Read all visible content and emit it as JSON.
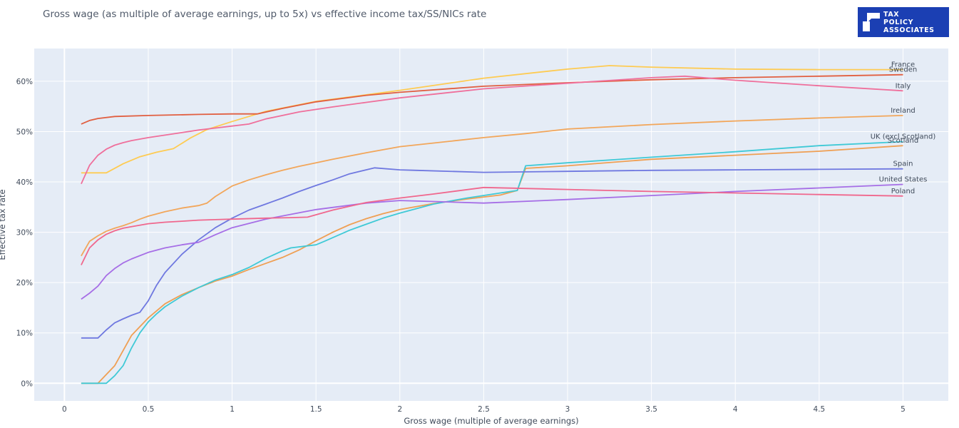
{
  "page": {
    "title": "Gross wage (as multiple of average earnings, up to 5x) vs effective income tax/SS/NICs rate",
    "logo": {
      "lines": [
        "TAX",
        "POLICY",
        "ASSOCIATES"
      ]
    }
  },
  "chart_data": {
    "type": "line",
    "title": "Gross wage (as multiple of average earnings, up to 5x) vs effective income tax/SS/NICs rate",
    "xlabel": "Gross wage (multiple of average earnings)",
    "ylabel": "Effective tax rate",
    "xlim": [
      -0.18,
      5.27
    ],
    "ylim": [
      -3.5,
      66.5
    ],
    "x_ticks": [
      0,
      0.5,
      1,
      1.5,
      2,
      2.5,
      3,
      3.5,
      4,
      4.5,
      5
    ],
    "x_tick_labels": [
      "0",
      "0.5",
      "1",
      "1.5",
      "2",
      "2.5",
      "3",
      "3.5",
      "4",
      "4.5",
      "5"
    ],
    "y_ticks": [
      0,
      10,
      20,
      30,
      40,
      50,
      60
    ],
    "y_tick_labels": [
      "0%",
      "10%",
      "20%",
      "30%",
      "40%",
      "50%",
      "60%"
    ],
    "grid": true,
    "legend": "labels at line ends (right)",
    "series": [
      {
        "name": "France",
        "color": "#fecb52",
        "x": [
          0.1,
          0.25,
          0.35,
          0.45,
          0.55,
          0.65,
          0.75,
          0.85,
          1.0,
          1.2,
          1.5,
          1.8,
          2.0,
          2.5,
          3.0,
          3.25,
          3.5,
          4.0,
          4.5,
          5.0
        ],
        "y": [
          41.8,
          41.8,
          43.6,
          45.0,
          45.9,
          46.6,
          48.7,
          50.4,
          52.0,
          54.0,
          56.0,
          57.3,
          58.2,
          60.6,
          62.4,
          63.1,
          62.8,
          62.4,
          62.3,
          62.3
        ]
      },
      {
        "name": "Sweden",
        "color": "#e15f41",
        "x": [
          0.1,
          0.15,
          0.2,
          0.3,
          0.5,
          0.8,
          1.0,
          1.15,
          1.3,
          1.5,
          1.8,
          2.0,
          2.5,
          3.0,
          3.5,
          4.0,
          4.5,
          5.0
        ],
        "y": [
          51.5,
          52.2,
          52.6,
          53.0,
          53.2,
          53.4,
          53.5,
          53.5,
          54.6,
          55.9,
          57.2,
          57.8,
          59.0,
          59.7,
          60.3,
          60.7,
          61.0,
          61.3
        ]
      },
      {
        "name": "Italy",
        "color": "#ef6f9b",
        "x": [
          0.1,
          0.15,
          0.2,
          0.25,
          0.3,
          0.35,
          0.4,
          0.5,
          0.6,
          0.7,
          0.8,
          0.9,
          1.0,
          1.1,
          1.2,
          1.4,
          1.6,
          1.8,
          2.0,
          2.5,
          3.0,
          3.5,
          3.7,
          4.0,
          4.5,
          5.0
        ],
        "y": [
          39.6,
          43.3,
          45.3,
          46.5,
          47.3,
          47.8,
          48.2,
          48.8,
          49.3,
          49.8,
          50.3,
          50.7,
          51.1,
          51.5,
          52.5,
          53.9,
          54.9,
          55.8,
          56.7,
          58.5,
          59.6,
          60.7,
          61.0,
          60.2,
          59.1,
          58.1
        ]
      },
      {
        "name": "Ireland",
        "color": "#f2a65a",
        "x": [
          0.1,
          0.15,
          0.2,
          0.25,
          0.3,
          0.35,
          0.4,
          0.45,
          0.5,
          0.6,
          0.7,
          0.8,
          0.85,
          0.9,
          1.0,
          1.1,
          1.2,
          1.3,
          1.4,
          1.5,
          1.6,
          1.8,
          2.0,
          2.5,
          2.75,
          3.0,
          3.5,
          4.0,
          4.5,
          5.0
        ],
        "y": [
          25.3,
          28.2,
          29.3,
          30.2,
          30.8,
          31.3,
          31.9,
          32.6,
          33.2,
          34.1,
          34.8,
          35.3,
          35.8,
          37.1,
          39.2,
          40.4,
          41.4,
          42.3,
          43.1,
          43.8,
          44.5,
          45.8,
          47.0,
          48.8,
          49.6,
          50.5,
          51.4,
          52.1,
          52.7,
          53.2
        ]
      },
      {
        "name": "Scotland",
        "color": "#ef9f53",
        "x": [
          0.1,
          0.2,
          0.3,
          0.4,
          0.5,
          0.6,
          0.7,
          0.8,
          0.9,
          1.0,
          1.1,
          1.2,
          1.3,
          1.4,
          1.5,
          1.6,
          1.7,
          1.8,
          1.9,
          2.0,
          2.2,
          2.4,
          2.6,
          2.7,
          2.75,
          3.0,
          3.5,
          4.0,
          4.5,
          5.0
        ],
        "y": [
          0.0,
          0.0,
          3.5,
          9.5,
          13.0,
          15.8,
          17.6,
          19.0,
          20.3,
          21.3,
          22.6,
          23.8,
          25.0,
          26.5,
          28.3,
          30.0,
          31.5,
          32.7,
          33.7,
          34.5,
          35.7,
          36.6,
          37.4,
          38.3,
          42.7,
          43.2,
          44.5,
          45.3,
          46.1,
          47.2
        ]
      },
      {
        "name": "UK (excl Scotland)",
        "color": "#3fc9d6",
        "x": [
          0.1,
          0.15,
          0.2,
          0.25,
          0.3,
          0.35,
          0.4,
          0.45,
          0.5,
          0.55,
          0.6,
          0.7,
          0.8,
          0.9,
          1.0,
          1.1,
          1.2,
          1.3,
          1.35,
          1.5,
          1.55,
          1.7,
          1.9,
          2.0,
          2.2,
          2.4,
          2.6,
          2.7,
          2.75,
          3.0,
          3.5,
          4.0,
          4.5,
          5.0
        ],
        "y": [
          0.0,
          0.0,
          0.0,
          0.0,
          1.5,
          3.5,
          7.0,
          10.0,
          12.2,
          13.8,
          15.2,
          17.3,
          19.0,
          20.5,
          21.6,
          23.0,
          24.8,
          26.3,
          26.9,
          27.5,
          28.2,
          30.4,
          32.8,
          33.8,
          35.6,
          36.8,
          37.8,
          38.3,
          43.2,
          43.8,
          44.9,
          46.0,
          47.2,
          48.0
        ]
      },
      {
        "name": "Spain",
        "color": "#6f78e0",
        "x": [
          0.1,
          0.15,
          0.2,
          0.25,
          0.3,
          0.35,
          0.4,
          0.45,
          0.5,
          0.55,
          0.6,
          0.7,
          0.8,
          0.9,
          1.0,
          1.1,
          1.2,
          1.3,
          1.4,
          1.5,
          1.6,
          1.7,
          1.85,
          2.0,
          2.1,
          2.5,
          3.0,
          3.5,
          4.0,
          4.5,
          5.0
        ],
        "y": [
          9.0,
          9.0,
          9.0,
          10.6,
          12.0,
          12.8,
          13.5,
          14.1,
          16.4,
          19.5,
          22.0,
          25.6,
          28.5,
          30.9,
          32.8,
          34.4,
          35.6,
          36.8,
          38.1,
          39.3,
          40.4,
          41.6,
          42.8,
          42.4,
          42.3,
          41.9,
          42.1,
          42.3,
          42.4,
          42.5,
          42.6
        ]
      },
      {
        "name": "United States",
        "color": "#a66ee6",
        "x": [
          0.1,
          0.15,
          0.2,
          0.25,
          0.3,
          0.35,
          0.4,
          0.5,
          0.6,
          0.7,
          0.8,
          0.9,
          1.0,
          1.2,
          1.5,
          1.8,
          2.0,
          2.2,
          2.5,
          3.0,
          3.5,
          4.0,
          4.5,
          5.0
        ],
        "y": [
          16.7,
          17.9,
          19.3,
          21.4,
          22.8,
          23.9,
          24.7,
          26.0,
          26.9,
          27.5,
          28.0,
          29.5,
          30.9,
          32.6,
          34.5,
          35.8,
          36.3,
          36.1,
          35.8,
          36.5,
          37.3,
          38.1,
          38.8,
          39.5
        ]
      },
      {
        "name": "Poland",
        "color": "#f0678d",
        "x": [
          0.1,
          0.15,
          0.2,
          0.25,
          0.3,
          0.35,
          0.4,
          0.5,
          0.6,
          0.7,
          0.8,
          0.9,
          1.0,
          1.2,
          1.35,
          1.45,
          1.6,
          1.8,
          2.0,
          2.2,
          2.5,
          3.0,
          3.5,
          4.0,
          4.5,
          5.0
        ],
        "y": [
          23.5,
          26.9,
          28.5,
          29.6,
          30.3,
          30.8,
          31.1,
          31.7,
          32.0,
          32.2,
          32.4,
          32.5,
          32.6,
          32.8,
          32.9,
          33.0,
          34.4,
          35.9,
          36.8,
          37.6,
          38.9,
          38.5,
          38.1,
          37.8,
          37.5,
          37.2
        ]
      }
    ],
    "end_labels": [
      {
        "series": "France",
        "x": 5.0,
        "y": 62.3
      },
      {
        "series": "Sweden",
        "x": 5.0,
        "y": 61.3
      },
      {
        "series": "Italy",
        "x": 5.0,
        "y": 58.1
      },
      {
        "series": "Ireland",
        "x": 5.0,
        "y": 53.2
      },
      {
        "series": "Scotland",
        "x": 5.0,
        "y": 47.2
      },
      {
        "series": "UK (excl Scotland)",
        "x": 5.0,
        "y": 48.0
      },
      {
        "series": "Spain",
        "x": 5.0,
        "y": 42.6
      },
      {
        "series": "United States",
        "x": 5.0,
        "y": 39.5
      },
      {
        "series": "Poland",
        "x": 5.0,
        "y": 37.2
      }
    ]
  }
}
